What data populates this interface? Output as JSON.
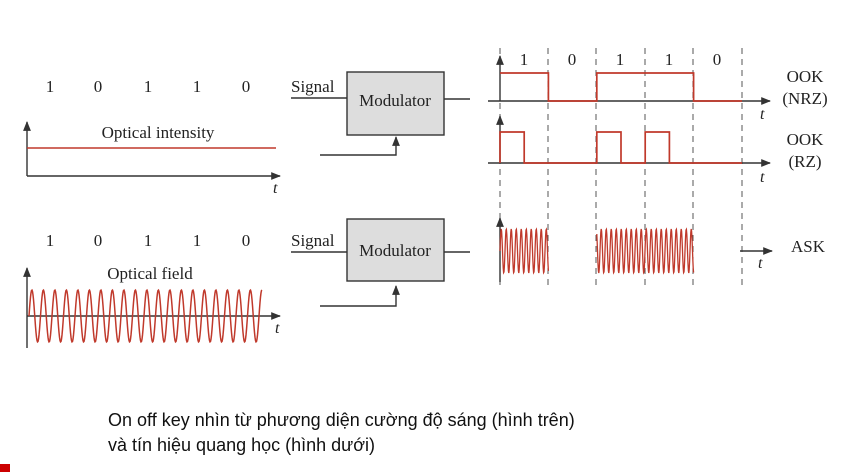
{
  "bits": [
    "1",
    "0",
    "1",
    "1",
    "0"
  ],
  "bit_values": [
    1,
    0,
    1,
    1,
    0
  ],
  "left_top_label": "Optical intensity",
  "left_bottom_label": "Optical field",
  "axis_t": "t",
  "signal_label": "Signal",
  "modulator_label": "Modulator",
  "ook_nrz": [
    "OOK",
    "(NRZ)"
  ],
  "ook_rz": [
    "OOK",
    "(RZ)"
  ],
  "ask_label": "ASK",
  "caption_lines": [
    "On off key nhìn từ phương diện cường độ sáng (hình trên)",
    "và tín hiệu quang học (hình dưới)"
  ],
  "colors": {
    "signal": "#c0392b",
    "axis": "#333333",
    "box": "#dddddd"
  }
}
